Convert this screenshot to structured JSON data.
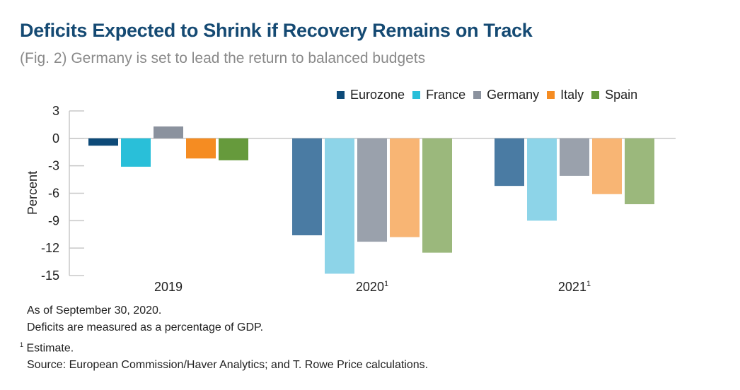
{
  "header": {
    "title": "Deficits Expected to Shrink if Recovery Remains on Track",
    "subtitle": "(Fig. 2) Germany is set to lead the return to balanced budgets"
  },
  "legend": [
    {
      "name": "Eurozone",
      "color": "#0d4a78"
    },
    {
      "name": "France",
      "color": "#29bfd9"
    },
    {
      "name": "Germany",
      "color": "#8b929e"
    },
    {
      "name": "Italy",
      "color": "#f58c22"
    },
    {
      "name": "Spain",
      "color": "#669a3c"
    }
  ],
  "chart_data": {
    "type": "bar",
    "title": "Deficits Expected to Shrink if Recovery Remains on Track",
    "ylabel": "Percent",
    "xlabel": "",
    "ylim": [
      -15,
      3
    ],
    "yticks": [
      3,
      0,
      -3,
      -6,
      -9,
      -12,
      -15
    ],
    "ytick_labels": [
      "3",
      "0",
      "-3",
      "-6",
      "-9",
      "-12",
      "-15"
    ],
    "categories": [
      "2019",
      "2020",
      "2021"
    ],
    "category_superscripts": [
      "",
      "1",
      "1"
    ],
    "legend_position": "top-right",
    "grid": false,
    "series": [
      {
        "name": "Eurozone",
        "values": [
          -0.8,
          -10.6,
          -5.2
        ],
        "colors": [
          "#0d4a78",
          "#4a7ba3",
          "#4a7ba3"
        ]
      },
      {
        "name": "France",
        "values": [
          -3.1,
          -14.8,
          -9.0
        ],
        "colors": [
          "#29bfd9",
          "#8dd4e8",
          "#8dd4e8"
        ]
      },
      {
        "name": "Germany",
        "values": [
          1.3,
          -11.3,
          -4.1
        ],
        "colors": [
          "#8b929e",
          "#9aa1ac",
          "#9aa1ac"
        ]
      },
      {
        "name": "Italy",
        "values": [
          -2.2,
          -10.8,
          -6.1
        ],
        "colors": [
          "#f58c22",
          "#f8b574",
          "#f8b574"
        ]
      },
      {
        "name": "Spain",
        "values": [
          -2.4,
          -12.5,
          -7.2
        ],
        "colors": [
          "#669a3c",
          "#9bb87c",
          "#9bb87c"
        ]
      }
    ]
  },
  "notes": {
    "as_of": "As of September 30, 2020.",
    "measure": "Deficits are measured as a percentage of GDP.",
    "footnote_marker": "1",
    "footnote": "Estimate.",
    "source": "Source: European Commission/Haver Analytics; and T. Rowe Price calculations."
  }
}
